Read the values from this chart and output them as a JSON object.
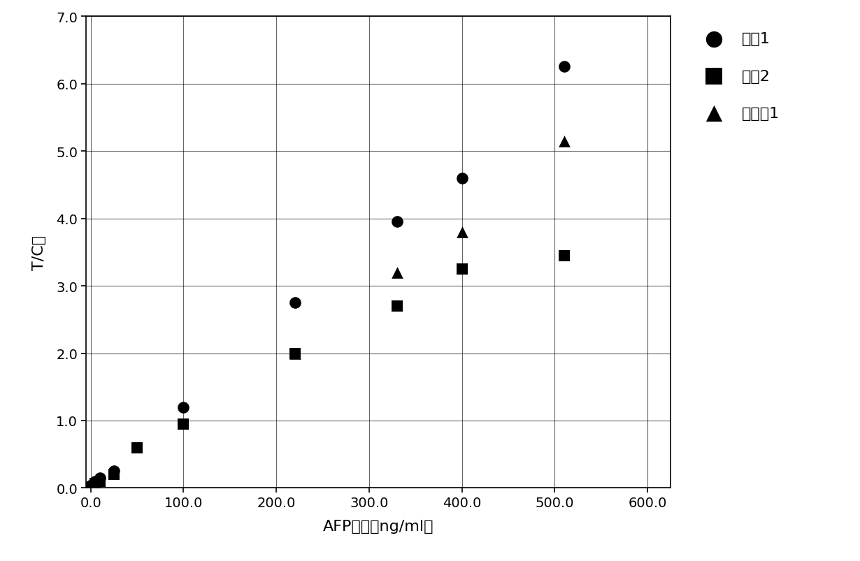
{
  "series": [
    {
      "label": "对比1",
      "marker": "o",
      "x": [
        1,
        5,
        10,
        25,
        100,
        220,
        330,
        400,
        510
      ],
      "y": [
        0.05,
        0.1,
        0.15,
        0.25,
        1.2,
        2.75,
        3.95,
        4.6,
        6.25
      ]
    },
    {
      "label": "对比2",
      "marker": "s",
      "x": [
        1,
        5,
        10,
        25,
        50,
        100,
        220,
        330,
        400,
        510
      ],
      "y": [
        0.02,
        0.07,
        0.1,
        0.2,
        0.6,
        0.95,
        2.0,
        2.7,
        3.25,
        3.45
      ]
    },
    {
      "label": "实施例1",
      "marker": "^",
      "x": [
        220,
        330,
        400,
        510
      ],
      "y": [
        2.0,
        3.2,
        3.8,
        5.15
      ]
    }
  ],
  "xlabel": "AFP浓度（ng/ml）",
  "ylabel": "T/C値",
  "xlim": [
    -5,
    625
  ],
  "ylim": [
    0.0,
    7.0
  ],
  "xticks": [
    0.0,
    100.0,
    200.0,
    300.0,
    400.0,
    500.0,
    600.0
  ],
  "yticks": [
    0.0,
    1.0,
    2.0,
    3.0,
    4.0,
    5.0,
    6.0,
    7.0
  ],
  "xtick_labels": [
    "0.0",
    "100.0",
    "200.0",
    "300.0",
    "400.0",
    "500.0",
    "600.0"
  ],
  "ytick_labels": [
    "0.0",
    "1.0",
    "2.0",
    "3.0",
    "4.0",
    "5.0",
    "6.0",
    "7.0"
  ],
  "marker_size": 12,
  "color": "black",
  "grid": true,
  "figsize": [
    12.3,
    8.04
  ],
  "dpi": 100,
  "tick_fontsize": 14,
  "label_fontsize": 16
}
